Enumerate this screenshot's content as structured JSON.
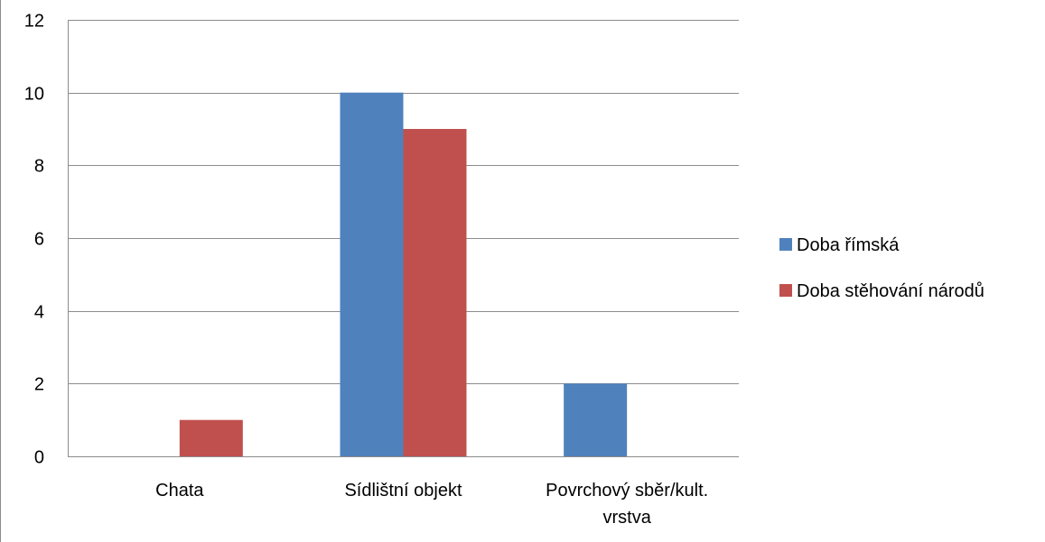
{
  "chart_data": {
    "type": "bar",
    "categories": [
      [
        "Chata"
      ],
      [
        "Sídlištní objekt"
      ],
      [
        "Povrchový sběr/kult.",
        "vrstva"
      ]
    ],
    "series": [
      {
        "name": "Doba římská",
        "values": [
          0,
          10,
          2
        ],
        "color": "#4f81bd"
      },
      {
        "name": "Doba stěhování národů",
        "values": [
          1,
          9,
          0
        ],
        "color": "#c0504d"
      }
    ],
    "yticks": [
      "0",
      "2",
      "4",
      "6",
      "8",
      "10",
      "12"
    ],
    "ylim": [
      0,
      12
    ],
    "grid": true,
    "legend_position": "right",
    "gridline_color": "#8c8c8c"
  }
}
